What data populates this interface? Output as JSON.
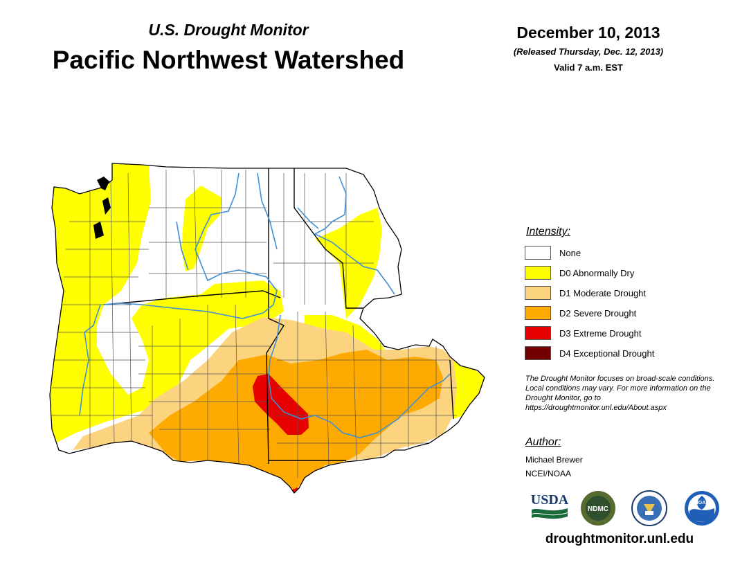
{
  "header": {
    "subtitle": "U.S. Drought Monitor",
    "title": "Pacific Northwest Watershed",
    "date": "December 10, 2013",
    "released": "(Released Thursday, Dec. 12, 2013)",
    "valid": "Valid 7 a.m. EST"
  },
  "legend": {
    "title": "Intensity:",
    "items": [
      {
        "label": "None",
        "color": "#ffffff"
      },
      {
        "label": "D0 Abnormally Dry",
        "color": "#ffff00"
      },
      {
        "label": "D1 Moderate Drought",
        "color": "#fcd37f"
      },
      {
        "label": "D2 Severe Drought",
        "color": "#ffaa00"
      },
      {
        "label": "D3 Extreme Drought",
        "color": "#e60000"
      },
      {
        "label": "D4 Exceptional Drought",
        "color": "#730000"
      }
    ]
  },
  "note": "The Drought Monitor focuses on broad-scale conditions. Local conditions may vary. For more information on the Drought Monitor, go to https://droughtmonitor.unl.edu/About.aspx",
  "author": {
    "title": "Author:",
    "name": "Michael Brewer",
    "org": "NCEI/NOAA"
  },
  "logos": {
    "usda": "USDA",
    "ndmc": "NDMC",
    "noaa": "NOAA"
  },
  "website": "droughtmonitor.unl.edu",
  "map_colors": {
    "boundary": "#555555",
    "state_line": "#000000",
    "river": "#3f8fd6"
  }
}
